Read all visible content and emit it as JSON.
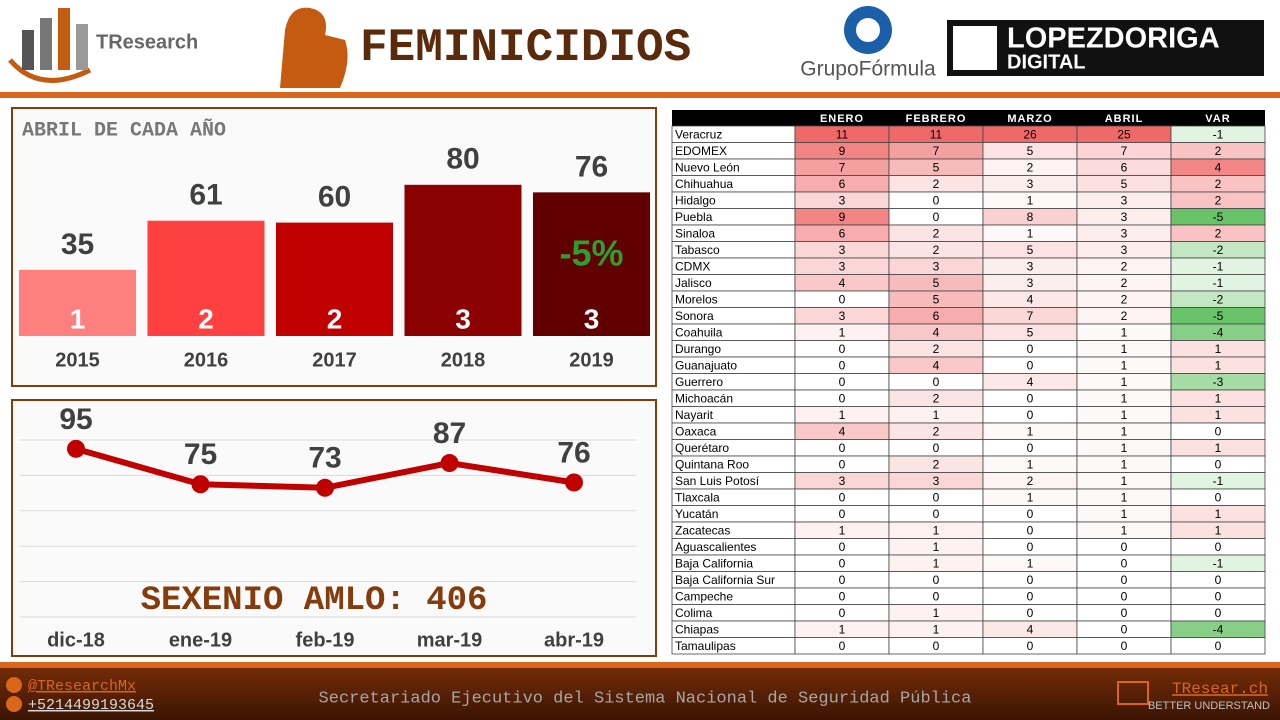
{
  "header": {
    "brand": "TResearch",
    "title": "FEMINICIDIOS",
    "partner_1": "GrupoFórmula",
    "partner_2_line_1": "LOPEZDORIGA",
    "partner_2_line_2": "DIGITAL"
  },
  "chart_data": [
    {
      "type": "bar",
      "title": "ABRIL DE CADA AÑO",
      "categories": [
        "2015",
        "2016",
        "2017",
        "2018",
        "2019"
      ],
      "values": [
        35,
        61,
        60,
        80,
        76
      ],
      "bar_labels": [
        1,
        2,
        2,
        3,
        3
      ],
      "colors": [
        "#ff7f7f",
        "#ff4040",
        "#c00000",
        "#8b0000",
        "#600000"
      ],
      "annotation": "-5%"
    },
    {
      "type": "line",
      "categories": [
        "dic-18",
        "ene-19",
        "feb-19",
        "mar-19",
        "abr-19"
      ],
      "values": [
        95,
        75,
        73,
        87,
        76
      ],
      "color": "#c00000",
      "ylim": [
        0,
        100
      ],
      "yticks": [
        0,
        20,
        40,
        60,
        80,
        100
      ],
      "grid": true,
      "annotation": "SEXENIO AMLO: 406"
    }
  ],
  "table": {
    "columns": [
      "ENERO",
      "FEBRERO",
      "MARZO",
      "ABRIL",
      "VAR"
    ],
    "rows": [
      [
        "Veracruz",
        11,
        11,
        26,
        25,
        -1
      ],
      [
        "EDOMEX",
        9,
        7,
        5,
        7,
        2
      ],
      [
        "Nuevo León",
        7,
        5,
        2,
        6,
        4
      ],
      [
        "Chihuahua",
        6,
        2,
        3,
        5,
        2
      ],
      [
        "Hidalgo",
        3,
        0,
        1,
        3,
        2
      ],
      [
        "Puebla",
        9,
        0,
        8,
        3,
        -5
      ],
      [
        "Sinaloa",
        6,
        2,
        1,
        3,
        2
      ],
      [
        "Tabasco",
        3,
        2,
        5,
        3,
        -2
      ],
      [
        "CDMX",
        3,
        3,
        3,
        2,
        -1
      ],
      [
        "Jalisco",
        4,
        5,
        3,
        2,
        -1
      ],
      [
        "Morelos",
        0,
        5,
        4,
        2,
        -2
      ],
      [
        "Sonora",
        3,
        6,
        7,
        2,
        -5
      ],
      [
        "Coahuila",
        1,
        4,
        5,
        1,
        -4
      ],
      [
        "Durango",
        0,
        2,
        0,
        1,
        1
      ],
      [
        "Guanajuato",
        0,
        4,
        0,
        1,
        1
      ],
      [
        "Guerrero",
        0,
        0,
        4,
        1,
        -3
      ],
      [
        "Michoacán",
        0,
        2,
        0,
        1,
        1
      ],
      [
        "Nayarit",
        1,
        1,
        0,
        1,
        1
      ],
      [
        "Oaxaca",
        4,
        2,
        1,
        1,
        0
      ],
      [
        "Querétaro",
        0,
        0,
        0,
        1,
        1
      ],
      [
        "Quintana Roo",
        0,
        2,
        1,
        1,
        0
      ],
      [
        "San Luis Potosí",
        3,
        3,
        2,
        1,
        -1
      ],
      [
        "Tlaxcala",
        0,
        0,
        1,
        1,
        0
      ],
      [
        "Yucatán",
        0,
        0,
        0,
        1,
        1
      ],
      [
        "Zacatecas",
        1,
        1,
        0,
        1,
        1
      ],
      [
        "Aguascalientes",
        0,
        1,
        0,
        0,
        0
      ],
      [
        "Baja California",
        0,
        1,
        1,
        0,
        -1
      ],
      [
        "Baja California Sur",
        0,
        0,
        0,
        0,
        0
      ],
      [
        "Campeche",
        0,
        0,
        0,
        0,
        0
      ],
      [
        "Colima",
        0,
        1,
        0,
        0,
        0
      ],
      [
        "Chiapas",
        1,
        1,
        4,
        0,
        -4
      ],
      [
        "Tamaulipas",
        0,
        0,
        0,
        0,
        0
      ]
    ]
  },
  "footer": {
    "twitter": "@TResearchMx",
    "phone": "+5214499193645",
    "source": "Secretariado Ejecutivo del Sistema Nacional de Seguridad Pública",
    "site": "TResear.ch",
    "tagline": "BETTER UNDERSTAND"
  }
}
